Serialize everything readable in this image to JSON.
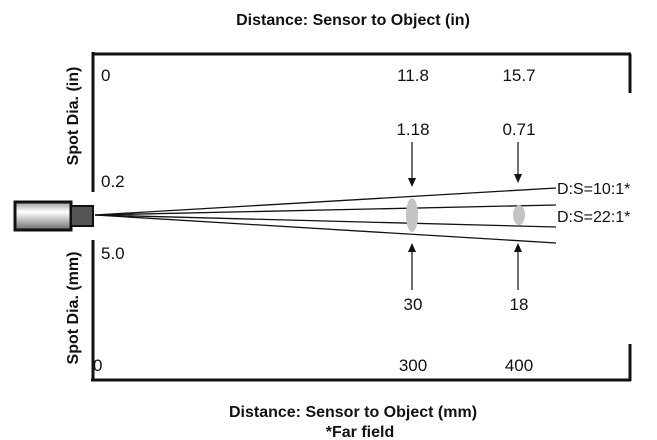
{
  "top_title": "Distance: Sensor to Object (in)",
  "bottom_title": "Distance: Sensor to Object (mm)",
  "footnote": "*Far field",
  "y_label_top": "Spot Dia. (in)",
  "y_label_bottom": "Spot Dia. (mm)",
  "inch_scale": {
    "axis_zero": "0",
    "spot_ref": "0.2",
    "distances": [
      "11.8",
      "15.7"
    ],
    "spot_diameters": [
      "1.18",
      "0.71"
    ]
  },
  "mm_scale": {
    "axis_zero": "0",
    "spot_ref": "5.0",
    "distances": [
      "300",
      "400"
    ],
    "spot_diameters": [
      "30",
      "18"
    ]
  },
  "ratios": {
    "wide": "D:S=10:1*",
    "narrow": "D:S=22:1*"
  },
  "colors": {
    "line": "#111111",
    "spot": "#c4c4c4",
    "sensor_body": "#d8d8d8",
    "sensor_tip": "#555555"
  }
}
